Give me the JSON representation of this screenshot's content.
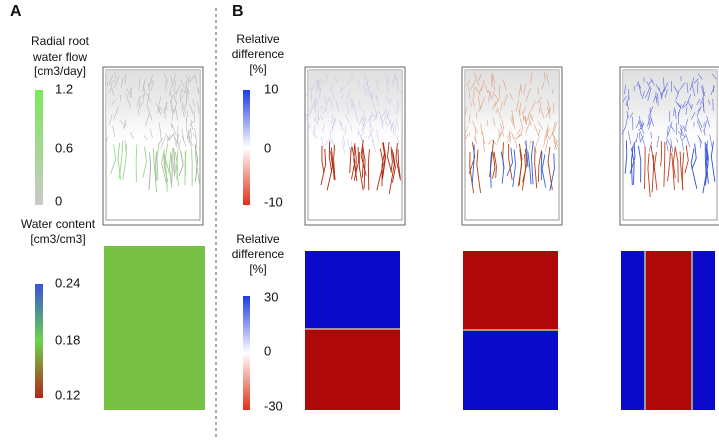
{
  "panels": [
    {
      "label": "A"
    },
    {
      "label": "B"
    }
  ],
  "colorbars": [
    {
      "title": [
        "Radial root",
        "water flow",
        "[cm3/day]"
      ],
      "ticks": [
        "1.2",
        "0.6",
        "0"
      ]
    },
    {
      "title": [
        "Water content",
        "[cm3/cm3]"
      ],
      "ticks": [
        "0.24",
        "0.18",
        "0.12"
      ]
    },
    {
      "title": [
        "Relative",
        "difference",
        "[%]"
      ],
      "ticks": [
        "10",
        "0",
        "-10"
      ]
    },
    {
      "title": [
        "Relative",
        "difference",
        "[%]"
      ],
      "ticks": [
        "30",
        "0",
        "-30"
      ]
    }
  ]
}
